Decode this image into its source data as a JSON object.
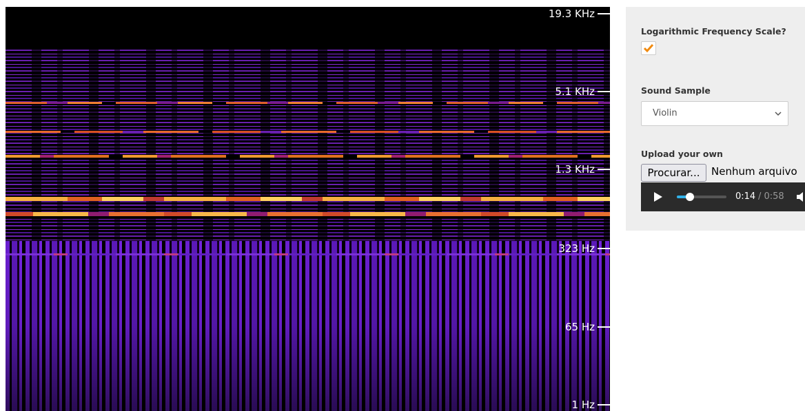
{
  "spectrogram": {
    "frequency_labels": [
      "19.3 KHz",
      "5.1 KHz",
      "1.3 KHz",
      "323 Hz",
      "65 Hz",
      "1 Hz"
    ]
  },
  "panel": {
    "log_scale_label": "Logarithmic Frequency Scale?",
    "sound_sample_label": "Sound Sample",
    "sound_sample_value": "Violin",
    "upload_label": "Upload your own",
    "browse_button": "Procurar...",
    "no_file_text": "Nenhum arquivo",
    "player": {
      "current_time": "0:14",
      "duration_text": "/ 0:58"
    }
  }
}
